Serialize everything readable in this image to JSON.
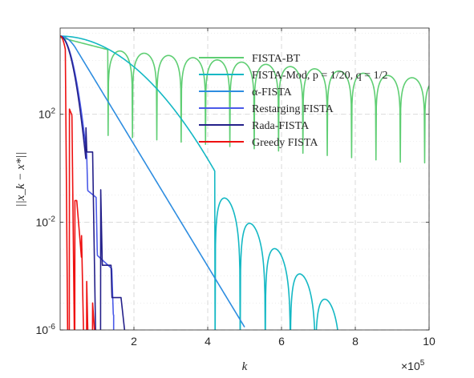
{
  "chart_data": {
    "type": "line",
    "title": "",
    "xlabel": "k",
    "ylabel": "||x_k − x*||",
    "x_multiplier": "×10^5",
    "x_multiplier_base": "×10",
    "x_multiplier_exp": "5",
    "xlim": [
      0,
      1000000
    ],
    "ylim_log10": [
      -6,
      5.2
    ],
    "y_scale": "log",
    "grid": true,
    "legend_placement": "top-right",
    "x_ticks": [
      {
        "value": 200000,
        "label": "2"
      },
      {
        "value": 400000,
        "label": "4"
      },
      {
        "value": 600000,
        "label": "6"
      },
      {
        "value": 800000,
        "label": "8"
      },
      {
        "value": 1000000,
        "label": "10"
      }
    ],
    "y_ticks": [
      {
        "log10": 2,
        "base": "10",
        "exp": "2"
      },
      {
        "log10": -2,
        "base": "10",
        "exp": "-2"
      },
      {
        "log10": -6,
        "base": "10",
        "exp": "-6"
      }
    ],
    "series": [
      {
        "name": "FISTA-BT",
        "color": "#5fce73"
      },
      {
        "name": "FISTA-Mod, p = 1/20, q = 1/2",
        "color": "#14b8c4"
      },
      {
        "name": "α-FISTA",
        "color": "#2e8de0"
      },
      {
        "name": "Restarging FISTA",
        "color": "#4a5ae8"
      },
      {
        "name": "Rada-FISTA",
        "color": "#24208a"
      },
      {
        "name": "Greedy FISTA",
        "color": "#ee1111"
      }
    ]
  }
}
